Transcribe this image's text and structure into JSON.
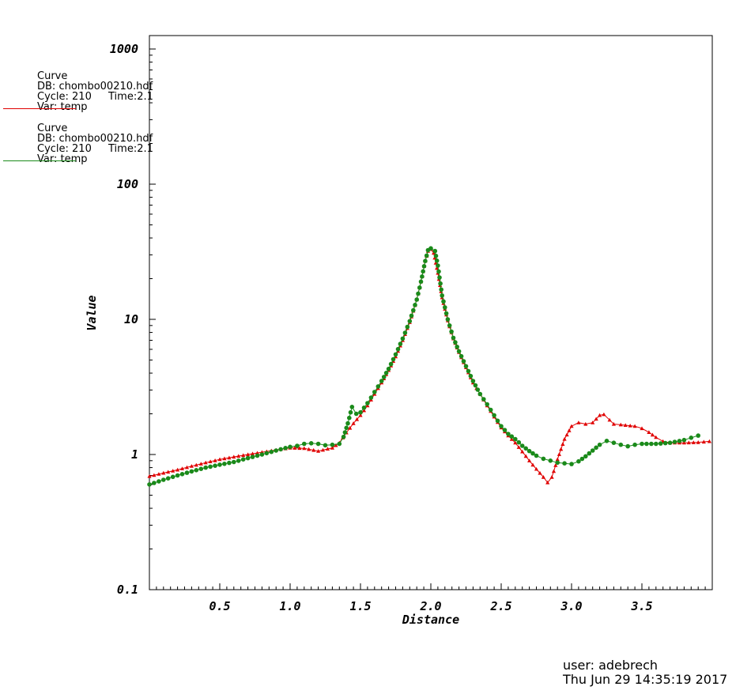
{
  "legend": [
    {
      "line1": "Curve",
      "line2": "DB: chombo00210.hdf",
      "line3a": "Cycle: 210",
      "line3b": "Time:2.1",
      "line4": "Var: temp",
      "color": "#e00000"
    },
    {
      "line1": "Curve",
      "line2": "DB: chombo00210.hdf",
      "line3a": "Cycle: 210",
      "line3b": "Time:2.1",
      "line4": "Var: temp",
      "color": "#1a8a1a"
    }
  ],
  "footer": {
    "user": "user: adebrech",
    "date": "Thu Jun 29 14:35:19 2017"
  },
  "chart_data": {
    "type": "line",
    "xlabel": "Distance",
    "ylabel": "Value",
    "xlim": [
      0.0,
      4.0
    ],
    "ylim": [
      0.1,
      1200
    ],
    "yscale": "log",
    "x_ticks": [
      "0.5",
      "1.0",
      "1.5",
      "2.0",
      "2.5",
      "3.0",
      "3.5"
    ],
    "x_tick_values": [
      0.5,
      1.0,
      1.5,
      2.0,
      2.5,
      3.0,
      3.5
    ],
    "y_ticks": [
      "0.1",
      "1",
      "10",
      "100",
      "1000"
    ],
    "y_tick_values": [
      0.1,
      1,
      10,
      100,
      1000
    ],
    "grid": false,
    "series": [
      {
        "color": "#e00000",
        "marker": "triangle",
        "points": [
          [
            0.0,
            0.69
          ],
          [
            0.1,
            0.73
          ],
          [
            0.2,
            0.77
          ],
          [
            0.3,
            0.82
          ],
          [
            0.4,
            0.87
          ],
          [
            0.5,
            0.92
          ],
          [
            0.6,
            0.96
          ],
          [
            0.7,
            1.0
          ],
          [
            0.8,
            1.04
          ],
          [
            0.9,
            1.08
          ],
          [
            1.0,
            1.12
          ],
          [
            1.1,
            1.11
          ],
          [
            1.2,
            1.06
          ],
          [
            1.3,
            1.12
          ],
          [
            1.35,
            1.22
          ],
          [
            1.4,
            1.45
          ],
          [
            1.45,
            1.7
          ],
          [
            1.5,
            1.95
          ],
          [
            1.55,
            2.3
          ],
          [
            1.6,
            2.8
          ],
          [
            1.65,
            3.4
          ],
          [
            1.7,
            4.2
          ],
          [
            1.75,
            5.3
          ],
          [
            1.8,
            7.0
          ],
          [
            1.85,
            9.5
          ],
          [
            1.9,
            14.0
          ],
          [
            1.93,
            19.0
          ],
          [
            1.96,
            27.0
          ],
          [
            1.98,
            32.0
          ],
          [
            2.0,
            33.0
          ],
          [
            2.02,
            31.0
          ],
          [
            2.05,
            22.0
          ],
          [
            2.08,
            14.5
          ],
          [
            2.12,
            9.8
          ],
          [
            2.16,
            7.2
          ],
          [
            2.2,
            5.7
          ],
          [
            2.25,
            4.4
          ],
          [
            2.3,
            3.4
          ],
          [
            2.35,
            2.8
          ],
          [
            2.4,
            2.3
          ],
          [
            2.45,
            1.9
          ],
          [
            2.5,
            1.58
          ],
          [
            2.55,
            1.38
          ],
          [
            2.6,
            1.22
          ],
          [
            2.65,
            1.05
          ],
          [
            2.7,
            0.9
          ],
          [
            2.75,
            0.78
          ],
          [
            2.8,
            0.68
          ],
          [
            2.83,
            0.62
          ],
          [
            2.86,
            0.68
          ],
          [
            2.9,
            0.92
          ],
          [
            2.95,
            1.3
          ],
          [
            3.0,
            1.62
          ],
          [
            3.05,
            1.72
          ],
          [
            3.1,
            1.68
          ],
          [
            3.15,
            1.72
          ],
          [
            3.2,
            1.95
          ],
          [
            3.23,
            1.98
          ],
          [
            3.27,
            1.8
          ],
          [
            3.3,
            1.68
          ],
          [
            3.35,
            1.66
          ],
          [
            3.45,
            1.62
          ],
          [
            3.5,
            1.56
          ],
          [
            3.55,
            1.46
          ],
          [
            3.6,
            1.34
          ],
          [
            3.65,
            1.25
          ],
          [
            3.7,
            1.22
          ],
          [
            3.8,
            1.22
          ],
          [
            3.9,
            1.23
          ],
          [
            3.98,
            1.25
          ]
        ]
      },
      {
        "color": "#1a8a1a",
        "marker": "circle",
        "points": [
          [
            0.0,
            0.6
          ],
          [
            0.1,
            0.65
          ],
          [
            0.2,
            0.7
          ],
          [
            0.3,
            0.75
          ],
          [
            0.4,
            0.8
          ],
          [
            0.5,
            0.84
          ],
          [
            0.6,
            0.88
          ],
          [
            0.7,
            0.94
          ],
          [
            0.8,
            1.0
          ],
          [
            0.9,
            1.07
          ],
          [
            1.0,
            1.14
          ],
          [
            1.05,
            1.16
          ],
          [
            1.1,
            1.2
          ],
          [
            1.15,
            1.21
          ],
          [
            1.2,
            1.2
          ],
          [
            1.25,
            1.17
          ],
          [
            1.3,
            1.18
          ],
          [
            1.35,
            1.2
          ],
          [
            1.38,
            1.35
          ],
          [
            1.41,
            1.7
          ],
          [
            1.44,
            2.25
          ],
          [
            1.47,
            2.0
          ],
          [
            1.5,
            2.05
          ],
          [
            1.55,
            2.4
          ],
          [
            1.6,
            2.9
          ],
          [
            1.65,
            3.5
          ],
          [
            1.7,
            4.3
          ],
          [
            1.75,
            5.5
          ],
          [
            1.8,
            7.2
          ],
          [
            1.85,
            9.7
          ],
          [
            1.9,
            14.0
          ],
          [
            1.93,
            19.0
          ],
          [
            1.96,
            27.0
          ],
          [
            1.98,
            32.5
          ],
          [
            2.0,
            33.5
          ],
          [
            2.03,
            32.0
          ],
          [
            2.05,
            25.0
          ],
          [
            2.08,
            15.0
          ],
          [
            2.12,
            10.0
          ],
          [
            2.16,
            7.3
          ],
          [
            2.2,
            5.8
          ],
          [
            2.25,
            4.5
          ],
          [
            2.3,
            3.5
          ],
          [
            2.35,
            2.8
          ],
          [
            2.4,
            2.35
          ],
          [
            2.45,
            1.95
          ],
          [
            2.5,
            1.62
          ],
          [
            2.55,
            1.42
          ],
          [
            2.6,
            1.3
          ],
          [
            2.65,
            1.16
          ],
          [
            2.7,
            1.06
          ],
          [
            2.75,
            0.98
          ],
          [
            2.8,
            0.93
          ],
          [
            2.85,
            0.9
          ],
          [
            2.9,
            0.87
          ],
          [
            2.95,
            0.86
          ],
          [
            3.0,
            0.85
          ],
          [
            3.05,
            0.89
          ],
          [
            3.1,
            0.97
          ],
          [
            3.15,
            1.07
          ],
          [
            3.2,
            1.18
          ],
          [
            3.25,
            1.26
          ],
          [
            3.3,
            1.22
          ],
          [
            3.35,
            1.18
          ],
          [
            3.4,
            1.15
          ],
          [
            3.45,
            1.18
          ],
          [
            3.5,
            1.2
          ],
          [
            3.6,
            1.2
          ],
          [
            3.7,
            1.22
          ],
          [
            3.8,
            1.28
          ],
          [
            3.85,
            1.33
          ],
          [
            3.9,
            1.38
          ]
        ]
      }
    ]
  }
}
